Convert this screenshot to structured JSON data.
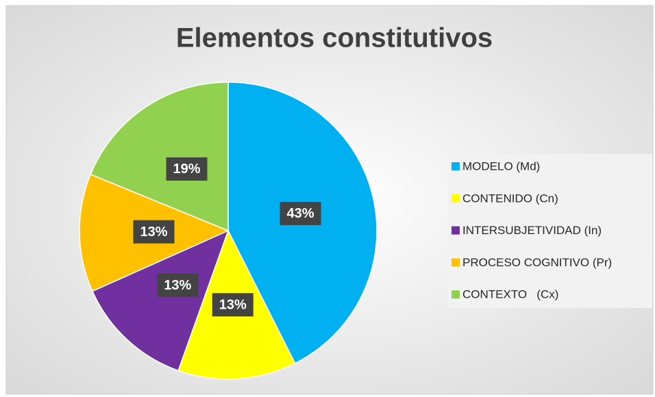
{
  "chart_data": {
    "type": "pie",
    "title": "Elementos constitutivos",
    "categories": [
      "MODELO (Md)",
      "CONTENIDO (Cn)",
      "INTERSUBJETIVIDAD (In)",
      "PROCESO COGNITIVO (Pr)",
      "CONTEXTO   (Cx)"
    ],
    "values": [
      43,
      13,
      13,
      13,
      19
    ],
    "value_labels": [
      "43%",
      "13%",
      "13%",
      "13%",
      "19%"
    ],
    "colors": [
      "#00b0f0",
      "#ffff00",
      "#7030a0",
      "#ffc000",
      "#92d050"
    ],
    "legend": "right"
  }
}
